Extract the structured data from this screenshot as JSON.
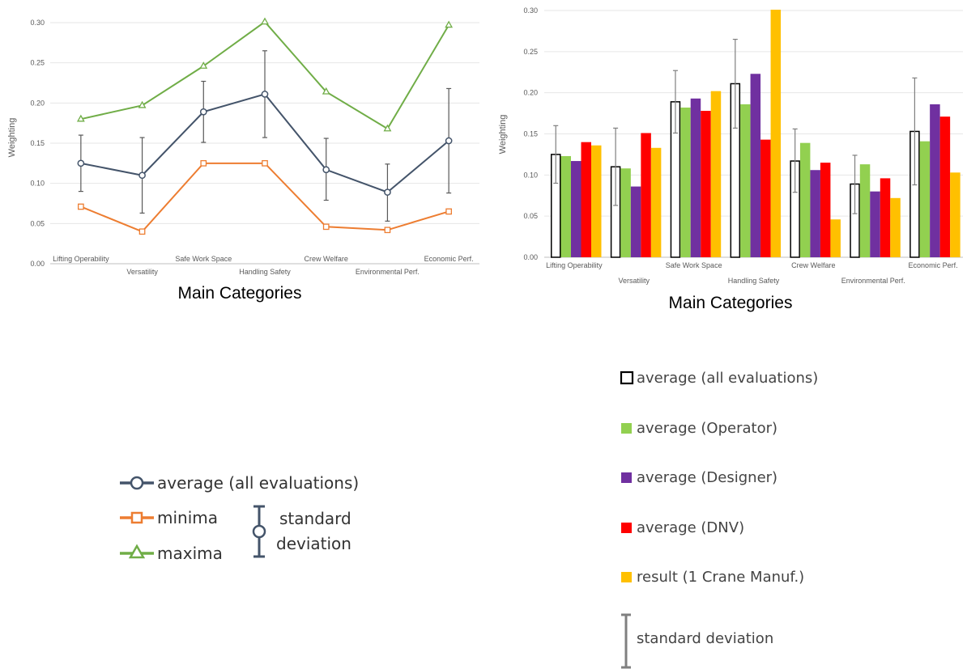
{
  "chart_data": [
    {
      "type": "line",
      "ylabel": "Weighting",
      "xlabel": "Main Categories",
      "ylim": [
        0,
        0.3
      ],
      "y_ticks": [
        "0.00",
        "0.05",
        "0.10",
        "0.15",
        "0.20",
        "0.25",
        "0.30"
      ],
      "categories": [
        "Lifting Operability",
        "Versatility",
        "Safe Work Space",
        "Handling Safety",
        "Crew Welfare",
        "Environmental Perf.",
        "Economic Perf."
      ],
      "series": [
        {
          "name": "average (all evaluations)",
          "color": "#44546A",
          "marker": "circle",
          "values": [
            0.125,
            0.11,
            0.189,
            0.211,
            0.117,
            0.089,
            0.153
          ],
          "std_low": [
            0.09,
            0.063,
            0.151,
            0.157,
            0.079,
            0.053,
            0.088
          ],
          "std_high": [
            0.16,
            0.157,
            0.227,
            0.265,
            0.156,
            0.124,
            0.218
          ]
        },
        {
          "name": "minima",
          "color": "#ED7D31",
          "marker": "square",
          "values": [
            0.071,
            0.04,
            0.125,
            0.125,
            0.046,
            0.042,
            0.065
          ]
        },
        {
          "name": "maxima",
          "color": "#70AD47",
          "marker": "triangle",
          "values": [
            0.18,
            0.197,
            0.246,
            0.301,
            0.214,
            0.168,
            0.297
          ]
        }
      ],
      "legend": {
        "average": "average (all evaluations)",
        "minima": "minima",
        "maxima": "maxima",
        "std_line1": "standard",
        "std_line2": "deviation"
      }
    },
    {
      "type": "bar",
      "ylabel": "Weighting",
      "xlabel": "Main Categories",
      "ylim": [
        0,
        0.3
      ],
      "y_ticks": [
        "0.00",
        "0.05",
        "0.10",
        "0.15",
        "0.20",
        "0.25",
        "0.30"
      ],
      "categories": [
        "Lifting Operability",
        "Versatility",
        "Safe Work Space",
        "Handling Safety",
        "Crew Welfare",
        "Environmental Perf.",
        "Economic Perf."
      ],
      "series": [
        {
          "name": "average (all evaluations)",
          "color": "#000000",
          "fill": "none",
          "values": [
            0.125,
            0.11,
            0.189,
            0.211,
            0.117,
            0.089,
            0.153
          ],
          "std_low": [
            0.09,
            0.063,
            0.151,
            0.157,
            0.079,
            0.053,
            0.088
          ],
          "std_high": [
            0.16,
            0.157,
            0.227,
            0.265,
            0.156,
            0.124,
            0.218
          ]
        },
        {
          "name": "average (Operator)",
          "color": "#92D050",
          "values": [
            0.123,
            0.108,
            0.182,
            0.186,
            0.139,
            0.113,
            0.141
          ]
        },
        {
          "name": "average (Designer)",
          "color": "#7030A0",
          "values": [
            0.117,
            0.086,
            0.193,
            0.223,
            0.106,
            0.08,
            0.186
          ]
        },
        {
          "name": "average (DNV)",
          "color": "#FF0000",
          "values": [
            0.14,
            0.151,
            0.178,
            0.143,
            0.115,
            0.096,
            0.171
          ]
        },
        {
          "name": "result (1 Crane Manuf.)",
          "color": "#FFC000",
          "values": [
            0.136,
            0.133,
            0.202,
            0.301,
            0.046,
            0.072,
            0.103
          ]
        }
      ],
      "legend": {
        "std": "standard deviation"
      }
    }
  ]
}
